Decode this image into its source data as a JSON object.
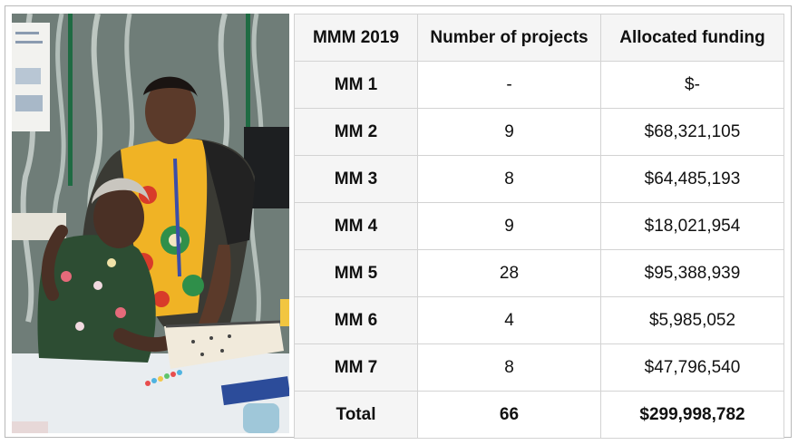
{
  "table": {
    "headers": [
      "MMM 2019",
      "Number of projects",
      "Allocated funding"
    ],
    "rows": [
      {
        "label": "MM 1",
        "projects": "-",
        "funding": "$-"
      },
      {
        "label": "MM 2",
        "projects": "9",
        "funding": "$68,321,105"
      },
      {
        "label": "MM 3",
        "projects": "8",
        "funding": "$64,485,193"
      },
      {
        "label": "MM 4",
        "projects": "9",
        "funding": "$18,021,954"
      },
      {
        "label": "MM 5",
        "projects": "28",
        "funding": "$95,388,939"
      },
      {
        "label": "MM 6",
        "projects": "4",
        "funding": "$5,985,052"
      },
      {
        "label": "MM 7",
        "projects": "8",
        "funding": "$47,796,540"
      }
    ],
    "total": {
      "label": "Total",
      "projects": "66",
      "funding": "$299,998,782"
    }
  },
  "colors": {
    "header_bg": "#f5f5f5",
    "border": "#d3d3d3",
    "frame_border": "#b9b9b9"
  }
}
